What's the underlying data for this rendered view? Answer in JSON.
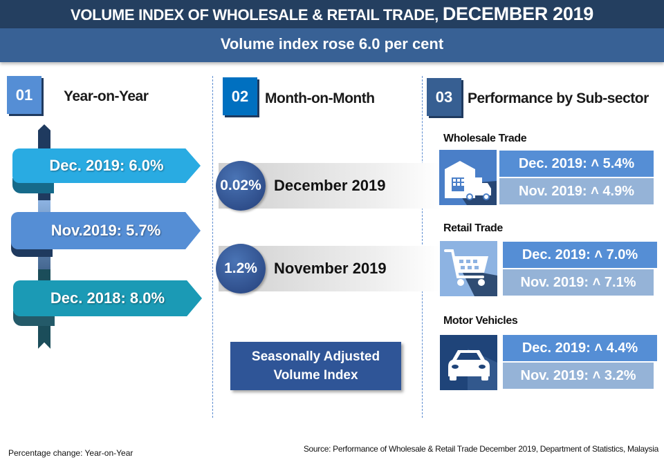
{
  "header": {
    "title": "VOLUME INDEX OF WHOLESALE & RETAIL TRADE,",
    "title_emphasis": "DECEMBER 2019",
    "subtitle": "Volume index rose 6.0 per cent"
  },
  "sections": [
    {
      "number": "01",
      "title": "Year-on-Year",
      "color": "#558ed5"
    },
    {
      "number": "02",
      "title": "Month-on-Month",
      "color": "#0070c0"
    },
    {
      "number": "03",
      "title": "Performance by Sub-sector",
      "color": "#375f92"
    }
  ],
  "year_on_year": [
    {
      "label": "Dec.  2019:",
      "value": "6.0%",
      "color": "#29abe2"
    },
    {
      "label": "Nov.2019:",
      "value": "5.7%",
      "color": "#558ed5"
    },
    {
      "label": "Dec. 2018:",
      "value": "8.0%",
      "color": "#1b9ab5"
    }
  ],
  "month_on_month": [
    {
      "value": "0.02%",
      "period": "December 2019"
    },
    {
      "value": "1.2%",
      "period": "November 2019"
    }
  ],
  "seasonally_adjusted_label": "Seasonally Adjusted Volume Index",
  "sub_sectors": [
    {
      "name": "Wholesale Trade",
      "icon": "warehouse-truck-icon",
      "dec": "Dec. 2019:",
      "dec_value": "5.4%",
      "nov": "Nov. 2019:",
      "nov_value": "4.9%"
    },
    {
      "name": "Retail Trade",
      "icon": "shopping-cart-icon",
      "dec": "Dec. 2019:",
      "dec_value": "7.0%",
      "nov": "Nov. 2019:",
      "nov_value": "7.1%"
    },
    {
      "name": "Motor Vehicles",
      "icon": "car-icon",
      "dec": "Dec. 2019:",
      "dec_value": "4.4%",
      "nov": "Nov. 2019:",
      "nov_value": "3.2%"
    }
  ],
  "footer": {
    "note": "Percentage change: Year-on-Year",
    "source": "Source: Performance of Wholesale & Retail Trade December 2019, Department of Statistics,  Malaysia"
  }
}
